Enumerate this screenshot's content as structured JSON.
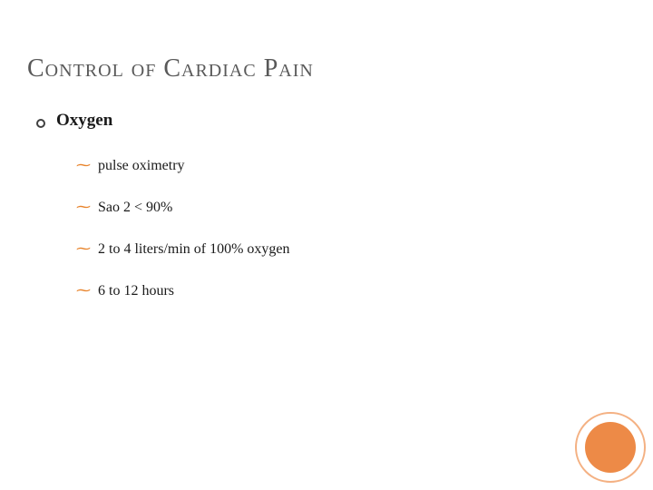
{
  "title_text": "Control of Cardiac Pain",
  "level1": {
    "text": "Oxygen"
  },
  "level2_items": [
    {
      "text": "pulse oximetry"
    },
    {
      "text": "Sao 2 < 90%"
    },
    {
      "text": "2 to 4 liters/min of 100% oxygen"
    },
    {
      "text": "6 to 12 hours"
    }
  ],
  "colors": {
    "title_color": "#595959",
    "text_color": "#1a1a1a",
    "bullet_l2_color": "#e8842c",
    "circle_ring": "#f4b183",
    "circle_fill": "#ed8a47",
    "background": "#ffffff"
  },
  "typography": {
    "font_family": "Georgia, Times New Roman, serif",
    "title_fontsize": 28,
    "level1_fontsize": 19,
    "level2_fontsize": 16
  }
}
